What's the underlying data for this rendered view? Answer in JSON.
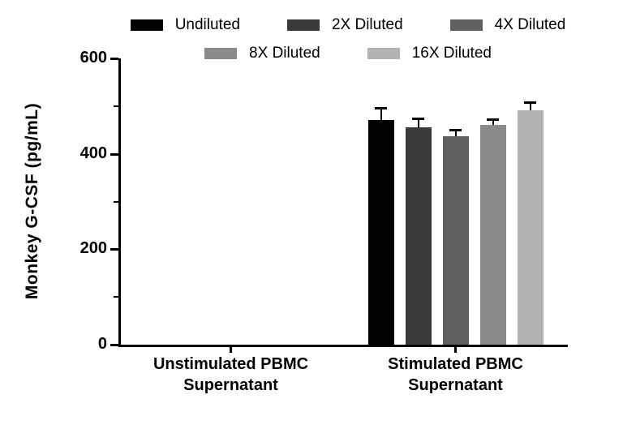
{
  "figure": {
    "background": "#ffffff"
  },
  "chart_data": {
    "type": "bar",
    "title": "",
    "xlabel": "",
    "ylabel": "Monkey G-CSF (pg/mL)",
    "ylim": [
      0,
      600
    ],
    "yticks_major": [
      0,
      200,
      400,
      600
    ],
    "yticks_minor": [
      100,
      300,
      500
    ],
    "grid": false,
    "legend_position": "top",
    "axis_color": "#000000",
    "error_bar_color": "#000000",
    "categories": [
      "Unstimulated PBMC\nSupernatant",
      "Stimulated PBMC\nSupernatant"
    ],
    "series": [
      {
        "name": "Undiluted",
        "color": "#000000",
        "values": [
          0,
          470
        ],
        "errors": [
          0,
          27
        ]
      },
      {
        "name": "2X Diluted",
        "color": "#3a3a3a",
        "values": [
          0,
          455
        ],
        "errors": [
          0,
          20
        ]
      },
      {
        "name": "4X Diluted",
        "color": "#606060",
        "values": [
          0,
          437
        ],
        "errors": [
          0,
          14
        ]
      },
      {
        "name": "8X Diluted",
        "color": "#8a8a8a",
        "values": [
          0,
          460
        ],
        "errors": [
          0,
          12
        ]
      },
      {
        "name": "16X Diluted",
        "color": "#b3b3b3",
        "values": [
          0,
          492
        ],
        "errors": [
          0,
          16
        ]
      }
    ],
    "legend_rows": [
      3,
      2
    ]
  }
}
